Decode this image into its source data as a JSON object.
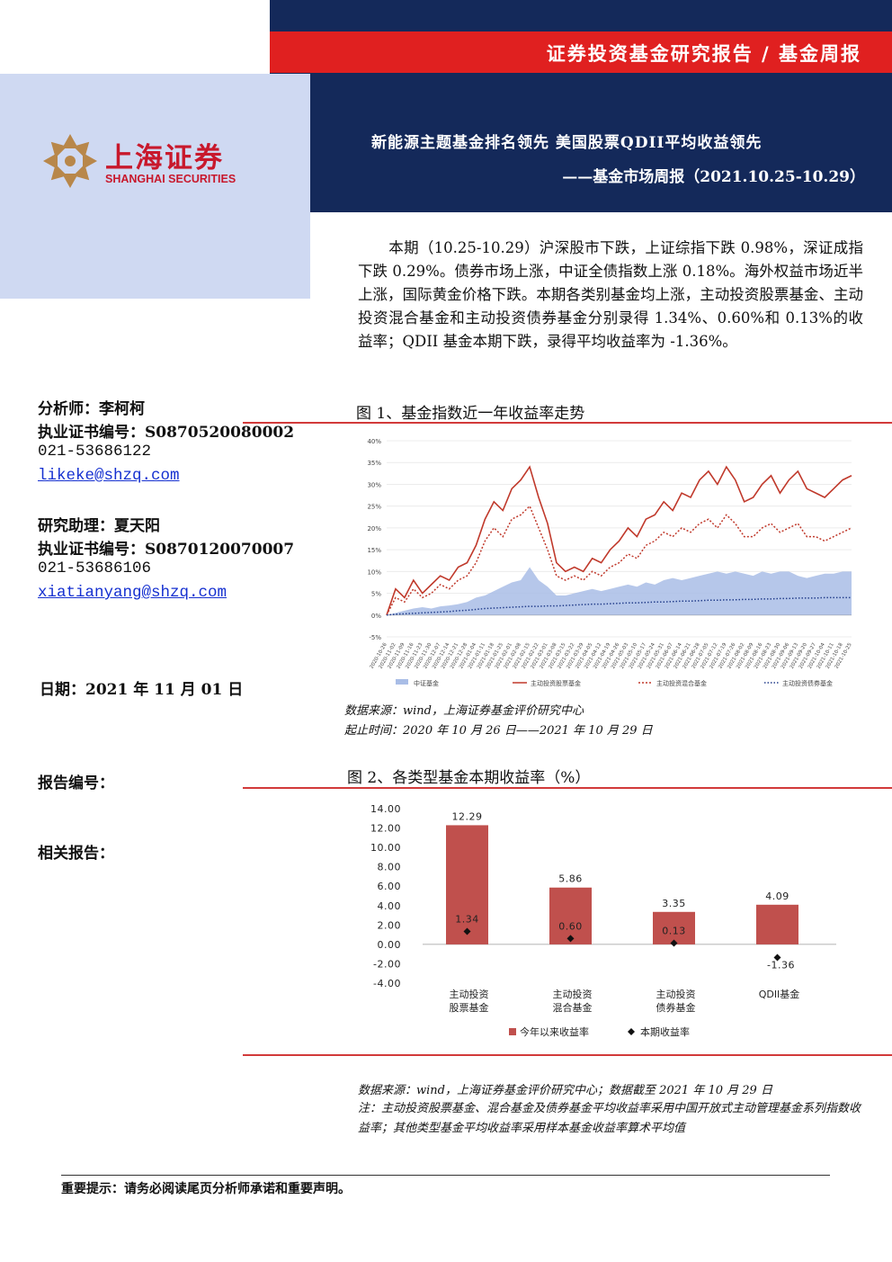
{
  "header": {
    "label": "证券投资基金研究报告 / 基金周报",
    "title": "新能源主题基金排名领先 美国股票QDII平均收益领先",
    "subtitle": "——基金市场周报（2021.10.25-10.29）"
  },
  "logo": {
    "cn": "上海证券",
    "en": "SHANGHAI SECURITIES"
  },
  "summary": "本期（10.25-10.29）沪深股市下跌，上证综指下跌 0.98%，深证成指下跌 0.29%。债券市场上涨，中证全债指数上涨 0.18%。海外权益市场近半上涨，国际黄金价格下跌。本期各类别基金均上涨，主动投资股票基金、主动投资混合基金和主动投资债券基金分别录得 1.34%、0.60%和 0.13%的收益率；QDII 基金本期下跌，录得平均收益率为 -1.36%。",
  "analyst": {
    "label": "分析师：李柯柯",
    "cert": "执业证书编号：S0870520080002",
    "phone": "021-53686122",
    "email": "likeke@shzq.com"
  },
  "assistant": {
    "label": "研究助理：夏天阳",
    "cert": "执业证书编号：S0870120070007",
    "phone": "021-53686106",
    "email": "xiatianyang@shzq.com"
  },
  "date": "日期：2021 年 11 月 01 日",
  "report_no": "报告编号：",
  "related": "相关报告：",
  "fig1": {
    "title": "图 1、基金指数近一年收益率走势",
    "source": "数据来源：wind，上海证券基金评价研究中心",
    "period": "起止时间：2020 年 10 月 26 日——2021 年 10 月 29 日"
  },
  "fig2": {
    "title": "图 2、各类型基金本期收益率（%）",
    "source": "数据来源：wind，上海证券基金评价研究中心；数据截至 2021 年 10 月 29 日",
    "note": "注：主动投资股票基金、混合基金及债券基金平均收益率采用中国开放式主动管理基金系列指数收益率；其他类型基金平均收益率采用样本基金收益率算术平均值"
  },
  "footer": "重要提示：请务必阅读尾页分析师承诺和重要声明。",
  "colors": {
    "navy": "#14295a",
    "red": "#e02020",
    "bar": "#c0504d",
    "area": "#a9bde6",
    "dotted": "#243f8c"
  },
  "chart_data": [
    {
      "type": "line",
      "ylim": [
        -5,
        40
      ],
      "y_ticks": [
        "40%",
        "35%",
        "30%",
        "25%",
        "20%",
        "15%",
        "10%",
        "5%",
        "0%",
        "-5%"
      ],
      "x": [
        "2020-10-26",
        "2020-11-02",
        "2020-11-09",
        "2020-11-16",
        "2020-11-23",
        "2020-11-30",
        "2020-12-07",
        "2020-12-14",
        "2020-12-21",
        "2020-12-28",
        "2021-01-04",
        "2021-01-11",
        "2021-01-18",
        "2021-01-25",
        "2021-02-01",
        "2021-02-08",
        "2021-02-15",
        "2021-02-22",
        "2021-03-01",
        "2021-03-08",
        "2021-03-15",
        "2021-03-22",
        "2021-03-29",
        "2021-04-05",
        "2021-04-12",
        "2021-04-19",
        "2021-04-26",
        "2021-05-03",
        "2021-05-10",
        "2021-05-17",
        "2021-05-24",
        "2021-05-31",
        "2021-06-07",
        "2021-06-14",
        "2021-06-21",
        "2021-06-28",
        "2021-07-05",
        "2021-07-12",
        "2021-07-19",
        "2021-07-26",
        "2021-08-02",
        "2021-08-09",
        "2021-08-16",
        "2021-08-23",
        "2021-08-30",
        "2021-09-06",
        "2021-09-13",
        "2021-09-20",
        "2021-09-27",
        "2021-10-04",
        "2021-10-11",
        "2021-10-18",
        "2021-10-25"
      ],
      "series": [
        {
          "name": "中证基金",
          "style": "area",
          "values": [
            0,
            0.5,
            1,
            1.5,
            1.8,
            1.5,
            2,
            2.2,
            2.5,
            3,
            4,
            4.5,
            5.5,
            6.5,
            7.5,
            8,
            11,
            8,
            6.5,
            4.5,
            4.5,
            5,
            5.5,
            6,
            5.5,
            6,
            6.5,
            7,
            6.5,
            7.5,
            7,
            8,
            8.5,
            8,
            8.5,
            9,
            9.5,
            10,
            9.5,
            10,
            9.5,
            9,
            10,
            9.5,
            10,
            10,
            9,
            8.5,
            9,
            9.5,
            9.5,
            10,
            10
          ]
        },
        {
          "name": "主动投资股票基金",
          "style": "solid",
          "values": [
            0,
            6,
            4,
            8,
            5,
            7,
            9,
            8,
            11,
            12,
            16,
            22,
            26,
            24,
            29,
            31,
            34,
            27,
            21,
            12,
            10,
            11,
            10,
            13,
            12,
            15,
            17,
            20,
            18,
            22,
            23,
            26,
            24,
            28,
            27,
            31,
            33,
            30,
            34,
            31,
            26,
            27,
            30,
            32,
            28,
            31,
            33,
            29,
            28,
            27,
            29,
            31,
            32
          ]
        },
        {
          "name": "主动投资混合基金",
          "style": "dashed",
          "values": [
            0,
            4,
            3,
            6,
            4,
            5,
            7,
            6,
            8,
            9,
            12,
            17,
            20,
            18,
            22,
            23,
            25,
            20,
            15,
            9,
            8,
            9,
            8,
            10,
            9,
            11,
            12,
            14,
            13,
            16,
            17,
            19,
            18,
            20,
            19,
            21,
            22,
            20,
            23,
            21,
            18,
            18,
            20,
            21,
            19,
            20,
            21,
            18,
            18,
            17,
            18,
            19,
            20
          ]
        },
        {
          "name": "主动投资债券基金",
          "style": "dotted",
          "values": [
            0,
            0.2,
            0.3,
            0.4,
            0.5,
            0.6,
            0.7,
            0.8,
            1,
            1.1,
            1.3,
            1.5,
            1.6,
            1.7,
            1.8,
            1.9,
            2,
            2,
            2.1,
            2.1,
            2.2,
            2.3,
            2.4,
            2.5,
            2.5,
            2.6,
            2.7,
            2.8,
            2.8,
            2.9,
            3,
            3,
            3.1,
            3.2,
            3.2,
            3.3,
            3.4,
            3.4,
            3.5,
            3.5,
            3.6,
            3.6,
            3.7,
            3.7,
            3.8,
            3.8,
            3.9,
            3.9,
            3.9,
            4,
            4,
            4,
            4
          ]
        }
      ]
    },
    {
      "type": "bar",
      "ylim": [
        -4,
        14
      ],
      "y_ticks": [
        "14.00",
        "12.00",
        "10.00",
        "8.00",
        "6.00",
        "4.00",
        "2.00",
        "0.00",
        "-2.00",
        "-4.00"
      ],
      "categories": [
        [
          "主动投资",
          "股票基金"
        ],
        [
          "主动投资",
          "混合基金"
        ],
        [
          "主动投资",
          "债券基金"
        ],
        [
          "QDII基金"
        ]
      ],
      "series": [
        {
          "name": "今年以来收益率",
          "values": [
            12.29,
            5.86,
            3.35,
            4.09
          ]
        },
        {
          "name": "本期收益率",
          "values": [
            1.34,
            0.6,
            0.13,
            -1.36
          ]
        }
      ]
    }
  ]
}
